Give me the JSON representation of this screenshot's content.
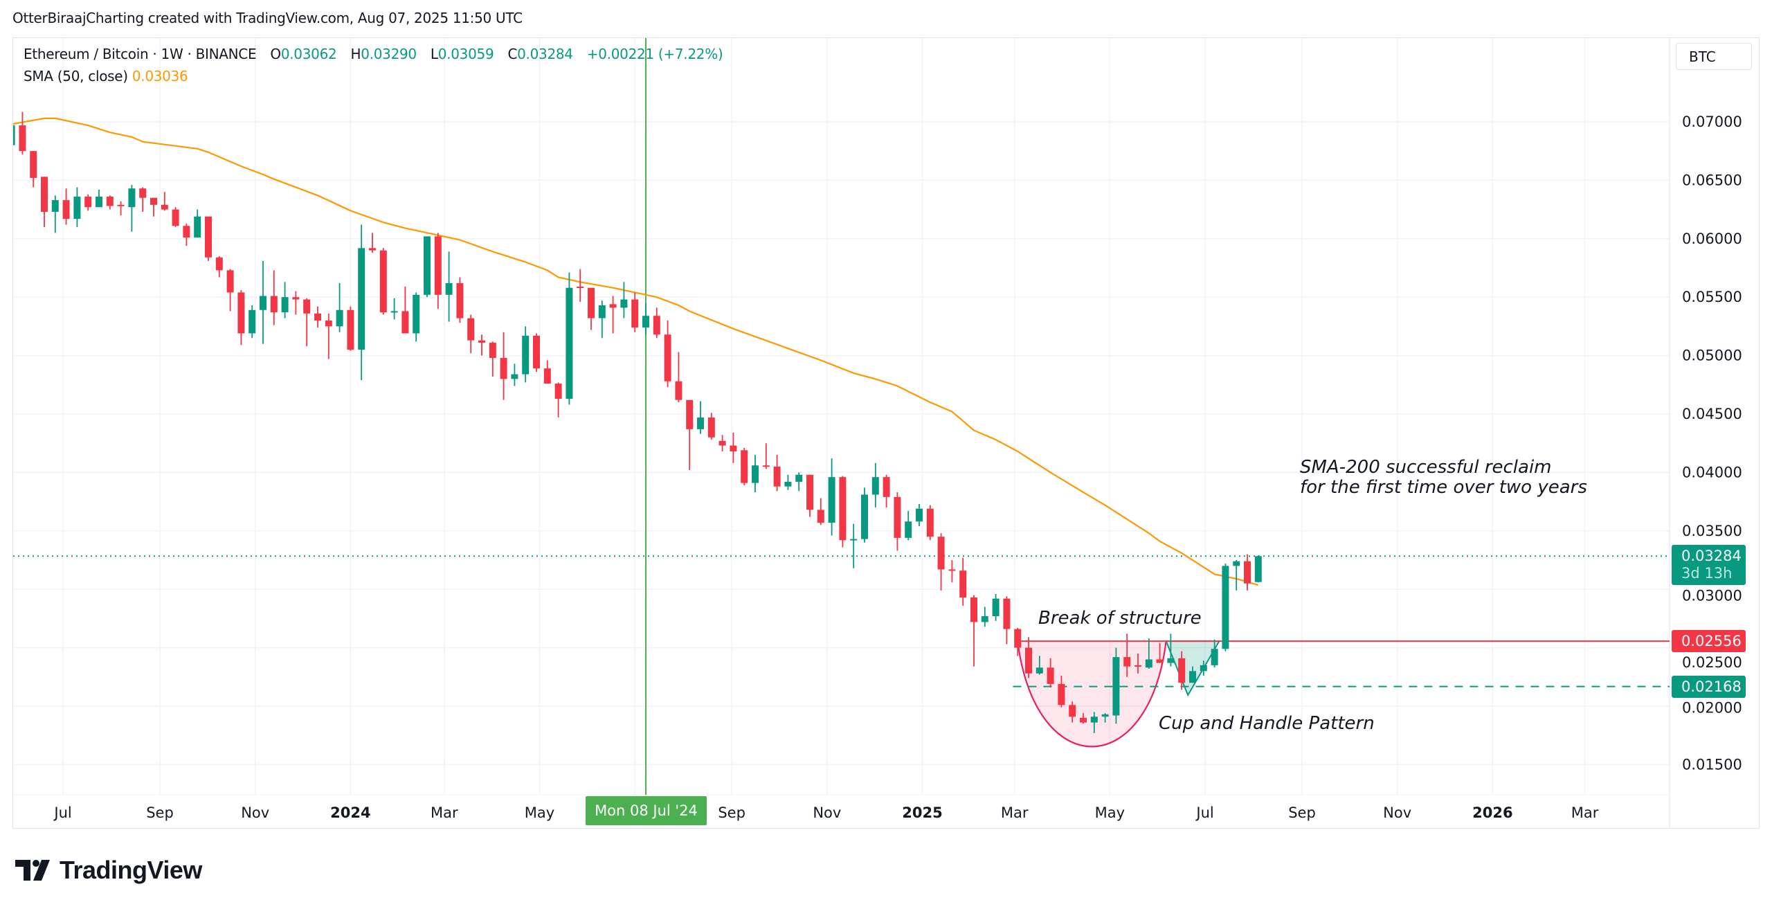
{
  "header": {
    "text": "OtterBiraajCharting created with TradingView.com, Aug 07, 2025 11:50 UTC"
  },
  "legend": {
    "symbol": "Ethereum / Bitcoin · 1W · BINANCE",
    "open_label": "O",
    "open": "0.03062",
    "high_label": "H",
    "high": "0.03290",
    "low_label": "L",
    "low": "0.03059",
    "close_label": "C",
    "close": "0.03284",
    "change": "+0.00221",
    "change_pct": "(+7.22%)",
    "sma_label": "SMA (50, close)",
    "sma_value": "0.03036"
  },
  "currency_button": "BTC",
  "price_tags": {
    "last": {
      "value": "0.03284",
      "countdown": "3d 13h",
      "color": "#089981"
    },
    "resistance": {
      "value": "0.02556",
      "color": "#f23645"
    },
    "support": {
      "value": "0.02168",
      "color": "#089981"
    }
  },
  "crosshair": {
    "label": "Mon 08 Jul '24",
    "date": "2024-07-08",
    "color": "#4caf50"
  },
  "annotations": {
    "break_of_structure": "Break of structure",
    "cup_handle": "Cup and Handle Pattern",
    "sma_line1": "SMA-200 successful reclaim",
    "sma_line2": "for the first time over two years"
  },
  "logo": {
    "text": "TradingView"
  },
  "chart_data": {
    "type": "candlestick",
    "title": "Ethereum / Bitcoin · 1W · BINANCE",
    "interval": "1W",
    "colors": {
      "up": "#089981",
      "down": "#f23645",
      "sma": "#ff9800",
      "grid": "#f0f3fa"
    },
    "grid": true,
    "ylim": [
      0.0125,
      0.0735
    ],
    "y_ticks": [
      "0.07000",
      "0.06500",
      "0.06000",
      "0.05500",
      "0.05000",
      "0.04500",
      "0.04000",
      "0.03500",
      "0.03000",
      "0.02500",
      "0.02000",
      "0.01500"
    ],
    "x_ticks": [
      {
        "label": "Jul",
        "date": "2023-07-01"
      },
      {
        "label": "Sep",
        "date": "2023-09-01"
      },
      {
        "label": "Nov",
        "date": "2023-11-01"
      },
      {
        "label": "2024",
        "date": "2024-01-01",
        "bold": true
      },
      {
        "label": "Mar",
        "date": "2024-03-01"
      },
      {
        "label": "May",
        "date": "2024-05-01"
      },
      {
        "label": "Sep",
        "date": "2024-09-01"
      },
      {
        "label": "Nov",
        "date": "2024-11-01"
      },
      {
        "label": "2025",
        "date": "2025-01-01",
        "bold": true
      },
      {
        "label": "Mar",
        "date": "2025-03-01"
      },
      {
        "label": "May",
        "date": "2025-05-01"
      },
      {
        "label": "Jul",
        "date": "2025-07-01"
      },
      {
        "label": "Sep",
        "date": "2025-09-01"
      },
      {
        "label": "Nov",
        "date": "2025-11-01"
      },
      {
        "label": "2026",
        "date": "2026-01-01",
        "bold": true
      },
      {
        "label": "Mar",
        "date": "2026-03-01"
      }
    ],
    "candles_columns": [
      "date",
      "open",
      "high",
      "low",
      "close"
    ],
    "candles": [
      [
        "2023-05-29",
        0.068,
        0.0697,
        0.068,
        0.0697
      ],
      [
        "2023-06-05",
        0.0697,
        0.07085,
        0.0672,
        0.0675
      ],
      [
        "2023-06-12",
        0.0675,
        0.0675,
        0.0644,
        0.0652
      ],
      [
        "2023-06-19",
        0.0653,
        0.0653,
        0.061,
        0.0623
      ],
      [
        "2023-06-26",
        0.0623,
        0.0637,
        0.0605,
        0.0633
      ],
      [
        "2023-07-03",
        0.0633,
        0.0643,
        0.0612,
        0.0617
      ],
      [
        "2023-07-10",
        0.0617,
        0.0644,
        0.061,
        0.0636
      ],
      [
        "2023-07-17",
        0.0636,
        0.0638,
        0.0624,
        0.0627
      ],
      [
        "2023-07-24",
        0.0627,
        0.0642,
        0.0627,
        0.0636
      ],
      [
        "2023-07-31",
        0.0636,
        0.0637,
        0.0625,
        0.0628
      ],
      [
        "2023-08-07",
        0.0629,
        0.0632,
        0.062,
        0.0628
      ],
      [
        "2023-08-14",
        0.0627,
        0.0646,
        0.0606,
        0.0643
      ],
      [
        "2023-08-21",
        0.0643,
        0.0644,
        0.0623,
        0.0635
      ],
      [
        "2023-08-28",
        0.0635,
        0.0635,
        0.0619,
        0.0629
      ],
      [
        "2023-09-04",
        0.0629,
        0.064,
        0.0624,
        0.0625
      ],
      [
        "2023-09-11",
        0.0625,
        0.0627,
        0.061,
        0.0611
      ],
      [
        "2023-09-18",
        0.0611,
        0.0613,
        0.0594,
        0.0601
      ],
      [
        "2023-09-25",
        0.0601,
        0.0625,
        0.0601,
        0.0619
      ],
      [
        "2023-10-02",
        0.0619,
        0.0619,
        0.0581,
        0.0584
      ],
      [
        "2023-10-09",
        0.0584,
        0.0585,
        0.0567,
        0.0573
      ],
      [
        "2023-10-16",
        0.0573,
        0.0574,
        0.0538,
        0.0554
      ],
      [
        "2023-10-23",
        0.0554,
        0.0556,
        0.0509,
        0.0519
      ],
      [
        "2023-10-30",
        0.0519,
        0.0543,
        0.0515,
        0.0539
      ],
      [
        "2023-11-06",
        0.0539,
        0.0581,
        0.051,
        0.0551
      ],
      [
        "2023-11-13",
        0.0551,
        0.0573,
        0.0526,
        0.0537
      ],
      [
        "2023-11-20",
        0.0537,
        0.0563,
        0.0532,
        0.055
      ],
      [
        "2023-11-27",
        0.055,
        0.0555,
        0.0535,
        0.0548
      ],
      [
        "2023-12-04",
        0.0548,
        0.0549,
        0.0508,
        0.0536
      ],
      [
        "2023-12-11",
        0.0536,
        0.0542,
        0.0524,
        0.053
      ],
      [
        "2023-12-18",
        0.053,
        0.0536,
        0.0497,
        0.0525
      ],
      [
        "2023-12-25",
        0.0525,
        0.0562,
        0.052,
        0.0539
      ],
      [
        "2024-01-01",
        0.0539,
        0.0542,
        0.0504,
        0.0505
      ],
      [
        "2024-01-08",
        0.0505,
        0.0612,
        0.0479,
        0.0592
      ],
      [
        "2024-01-15",
        0.0592,
        0.0605,
        0.0588,
        0.059
      ],
      [
        "2024-01-22",
        0.059,
        0.0592,
        0.0535,
        0.0537
      ],
      [
        "2024-01-29",
        0.0537,
        0.0549,
        0.0531,
        0.0538
      ],
      [
        "2024-02-05",
        0.0538,
        0.0559,
        0.0519,
        0.0519
      ],
      [
        "2024-02-12",
        0.0519,
        0.0554,
        0.0512,
        0.0552
      ],
      [
        "2024-02-19",
        0.0552,
        0.0602,
        0.055,
        0.0602
      ],
      [
        "2024-02-26",
        0.0602,
        0.0605,
        0.054,
        0.0552
      ],
      [
        "2024-03-04",
        0.0552,
        0.0589,
        0.0529,
        0.0562
      ],
      [
        "2024-03-11",
        0.0562,
        0.0567,
        0.0528,
        0.0532
      ],
      [
        "2024-03-18",
        0.0532,
        0.0535,
        0.0502,
        0.0513
      ],
      [
        "2024-03-25",
        0.0513,
        0.0518,
        0.05,
        0.0511
      ],
      [
        "2024-04-01",
        0.0511,
        0.0512,
        0.0482,
        0.0498
      ],
      [
        "2024-04-08",
        0.0498,
        0.052,
        0.0462,
        0.048
      ],
      [
        "2024-04-15",
        0.048,
        0.0493,
        0.0474,
        0.0484
      ],
      [
        "2024-04-22",
        0.0484,
        0.0525,
        0.0477,
        0.0517
      ],
      [
        "2024-04-29",
        0.0517,
        0.0519,
        0.0486,
        0.0489
      ],
      [
        "2024-05-06",
        0.0489,
        0.0496,
        0.0476,
        0.0476
      ],
      [
        "2024-05-13",
        0.0476,
        0.0477,
        0.0447,
        0.0463
      ],
      [
        "2024-05-20",
        0.0463,
        0.0571,
        0.0458,
        0.0558
      ],
      [
        "2024-05-27",
        0.0559,
        0.0574,
        0.0546,
        0.0558
      ],
      [
        "2024-06-03",
        0.0558,
        0.0558,
        0.0522,
        0.0532
      ],
      [
        "2024-06-10",
        0.0532,
        0.0547,
        0.0515,
        0.0543
      ],
      [
        "2024-06-17",
        0.0544,
        0.0551,
        0.0519,
        0.0541
      ],
      [
        "2024-06-24",
        0.0541,
        0.0563,
        0.0532,
        0.0548
      ],
      [
        "2024-07-01",
        0.0548,
        0.0554,
        0.052,
        0.0524
      ],
      [
        "2024-07-08",
        0.0524,
        0.0545,
        0.0518,
        0.0534
      ],
      [
        "2024-07-15",
        0.0534,
        0.0541,
        0.0515,
        0.0518
      ],
      [
        "2024-07-22",
        0.0518,
        0.053,
        0.0473,
        0.0478
      ],
      [
        "2024-07-29",
        0.0478,
        0.0503,
        0.046,
        0.0462
      ],
      [
        "2024-08-05",
        0.0462,
        0.0462,
        0.0402,
        0.0437
      ],
      [
        "2024-08-12",
        0.0437,
        0.0461,
        0.0433,
        0.0447
      ],
      [
        "2024-08-19",
        0.0447,
        0.0451,
        0.0428,
        0.043
      ],
      [
        "2024-08-26",
        0.0427,
        0.0432,
        0.0418,
        0.0423
      ],
      [
        "2024-09-02",
        0.0423,
        0.0434,
        0.0408,
        0.0418
      ],
      [
        "2024-09-09",
        0.0419,
        0.0421,
        0.0389,
        0.0391
      ],
      [
        "2024-09-16",
        0.0391,
        0.0415,
        0.0383,
        0.0406
      ],
      [
        "2024-09-23",
        0.0406,
        0.0425,
        0.0403,
        0.0405
      ],
      [
        "2024-09-30",
        0.0405,
        0.0415,
        0.0384,
        0.0388
      ],
      [
        "2024-10-07",
        0.0388,
        0.0398,
        0.0385,
        0.0392
      ],
      [
        "2024-10-14",
        0.0392,
        0.04,
        0.0384,
        0.0398
      ],
      [
        "2024-10-21",
        0.0398,
        0.0398,
        0.0362,
        0.0368
      ],
      [
        "2024-10-28",
        0.0368,
        0.0378,
        0.0355,
        0.0357
      ],
      [
        "2024-11-04",
        0.0357,
        0.0412,
        0.0346,
        0.0396
      ],
      [
        "2024-11-11",
        0.0396,
        0.0397,
        0.0336,
        0.0342
      ],
      [
        "2024-11-18",
        0.0342,
        0.0356,
        0.0318,
        0.0343
      ],
      [
        "2024-11-25",
        0.0343,
        0.0387,
        0.034,
        0.0381
      ],
      [
        "2024-12-02",
        0.0381,
        0.0408,
        0.037,
        0.0396
      ],
      [
        "2024-12-09",
        0.0396,
        0.0398,
        0.037,
        0.0379
      ],
      [
        "2024-12-16",
        0.0379,
        0.0383,
        0.0333,
        0.0344
      ],
      [
        "2024-12-23",
        0.0344,
        0.0367,
        0.0342,
        0.0358
      ],
      [
        "2024-12-30",
        0.0358,
        0.0373,
        0.0354,
        0.0369
      ],
      [
        "2025-01-06",
        0.0369,
        0.0372,
        0.0342,
        0.0345
      ],
      [
        "2025-01-13",
        0.0345,
        0.0348,
        0.0299,
        0.0317
      ],
      [
        "2025-01-20",
        0.0317,
        0.0325,
        0.0306,
        0.0316
      ],
      [
        "2025-01-27",
        0.0316,
        0.0327,
        0.0286,
        0.0293
      ],
      [
        "2025-02-03",
        0.0293,
        0.0295,
        0.0234,
        0.0272
      ],
      [
        "2025-02-10",
        0.0272,
        0.0285,
        0.0268,
        0.0277
      ],
      [
        "2025-02-17",
        0.0277,
        0.0296,
        0.0273,
        0.0292
      ],
      [
        "2025-02-24",
        0.0292,
        0.0294,
        0.0253,
        0.0266
      ],
      [
        "2025-03-03",
        0.0266,
        0.0267,
        0.0243,
        0.025
      ],
      [
        "2025-03-10",
        0.025,
        0.0259,
        0.0224,
        0.0228
      ],
      [
        "2025-03-17",
        0.0228,
        0.0243,
        0.0227,
        0.0233
      ],
      [
        "2025-03-24",
        0.0233,
        0.0241,
        0.0216,
        0.0219
      ],
      [
        "2025-03-31",
        0.0219,
        0.0226,
        0.0199,
        0.0201
      ],
      [
        "2025-04-07",
        0.0201,
        0.0204,
        0.0186,
        0.0191
      ],
      [
        "2025-04-14",
        0.019,
        0.0194,
        0.0185,
        0.0186
      ],
      [
        "2025-04-21",
        0.0186,
        0.0195,
        0.0177,
        0.0191
      ],
      [
        "2025-04-28",
        0.0191,
        0.0194,
        0.0186,
        0.0193
      ],
      [
        "2025-05-05",
        0.0192,
        0.025,
        0.0185,
        0.0242
      ],
      [
        "2025-05-12",
        0.0242,
        0.0262,
        0.0225,
        0.0234
      ],
      [
        "2025-05-19",
        0.0235,
        0.0245,
        0.0228,
        0.0234
      ],
      [
        "2025-05-26",
        0.0233,
        0.0258,
        0.0232,
        0.024
      ],
      [
        "2025-06-02",
        0.024,
        0.0254,
        0.0237,
        0.0237
      ],
      [
        "2025-06-09",
        0.0237,
        0.0262,
        0.0234,
        0.0241
      ],
      [
        "2025-06-16",
        0.0241,
        0.0247,
        0.0214,
        0.022
      ],
      [
        "2025-06-23",
        0.022,
        0.0234,
        0.022,
        0.023
      ],
      [
        "2025-06-30",
        0.023,
        0.0239,
        0.0226,
        0.0235
      ],
      [
        "2025-07-07",
        0.0235,
        0.0257,
        0.0233,
        0.0249
      ],
      [
        "2025-07-14",
        0.0249,
        0.0322,
        0.0247,
        0.032
      ],
      [
        "2025-07-21",
        0.032,
        0.0325,
        0.0299,
        0.0324
      ],
      [
        "2025-07-28",
        0.0324,
        0.033,
        0.0299,
        0.0305
      ],
      [
        "2025-08-04",
        0.03062,
        0.0329,
        0.03059,
        0.03284
      ]
    ],
    "sma": {
      "name": "SMA (50, close)",
      "points": [
        [
          "2023-05-29",
          0.0698
        ],
        [
          "2023-06-19",
          0.0703
        ],
        [
          "2023-06-26",
          0.0703
        ],
        [
          "2023-07-17",
          0.0697
        ],
        [
          "2023-07-31",
          0.0691
        ],
        [
          "2023-08-14",
          0.0687
        ],
        [
          "2023-08-21",
          0.0683
        ],
        [
          "2023-09-25",
          0.0677
        ],
        [
          "2023-10-02",
          0.0674
        ],
        [
          "2023-10-23",
          0.0662
        ],
        [
          "2023-11-06",
          0.0655
        ],
        [
          "2023-11-13",
          0.0651
        ],
        [
          "2023-12-11",
          0.0637
        ],
        [
          "2024-01-01",
          0.0624
        ],
        [
          "2024-01-22",
          0.0614
        ],
        [
          "2024-02-05",
          0.0609
        ],
        [
          "2024-02-26",
          0.0603
        ],
        [
          "2024-03-11",
          0.0599
        ],
        [
          "2024-04-01",
          0.0589
        ],
        [
          "2024-04-22",
          0.058
        ],
        [
          "2024-05-06",
          0.0573
        ],
        [
          "2024-05-13",
          0.0567
        ],
        [
          "2024-05-27",
          0.0563
        ],
        [
          "2024-06-17",
          0.0558
        ],
        [
          "2024-07-01",
          0.0554
        ],
        [
          "2024-07-15",
          0.055
        ],
        [
          "2024-07-29",
          0.0543
        ],
        [
          "2024-08-05",
          0.0538
        ],
        [
          "2024-09-02",
          0.0523
        ],
        [
          "2024-10-28",
          0.0496
        ],
        [
          "2024-11-18",
          0.0485
        ],
        [
          "2024-12-02",
          0.048
        ],
        [
          "2024-12-16",
          0.0474
        ],
        [
          "2025-01-06",
          0.046
        ],
        [
          "2025-01-20",
          0.0452
        ],
        [
          "2025-02-03",
          0.0436
        ],
        [
          "2025-02-17",
          0.0428
        ],
        [
          "2025-03-03",
          0.0418
        ],
        [
          "2025-03-24",
          0.04
        ],
        [
          "2025-04-14",
          0.0383
        ],
        [
          "2025-04-28",
          0.0372
        ],
        [
          "2025-05-12",
          0.036
        ],
        [
          "2025-05-26",
          0.0348
        ],
        [
          "2025-06-02",
          0.0341
        ],
        [
          "2025-06-16",
          0.0331
        ],
        [
          "2025-07-07",
          0.0313
        ],
        [
          "2025-07-21",
          0.0309
        ],
        [
          "2025-08-04",
          0.03036
        ]
      ]
    },
    "lines": {
      "last_price": 0.03284,
      "break_of_structure": {
        "price": 0.02556,
        "from": "2025-03-03"
      },
      "support": {
        "price": 0.02168,
        "from": "2025-02-28"
      }
    },
    "patterns": {
      "cup": {
        "start": [
          "2025-03-03",
          0.02556
        ],
        "bottom": [
          "2025-04-20",
          0.01654
        ],
        "end": [
          "2025-06-06",
          0.02556
        ]
      },
      "handle": {
        "start": [
          "2025-06-06",
          0.02556
        ],
        "bottom": [
          "2025-06-20",
          0.02095
        ],
        "end": [
          "2025-07-10",
          0.02556
        ]
      }
    }
  }
}
